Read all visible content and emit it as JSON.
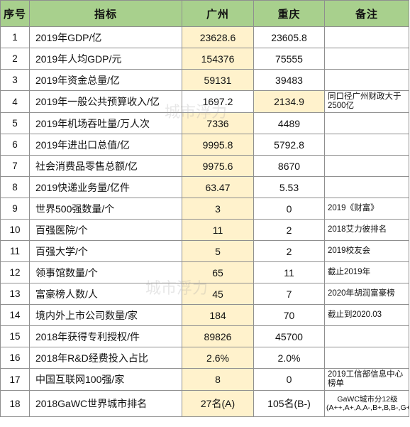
{
  "header": {
    "col_index": "序号",
    "col_indicator": "指标",
    "col_guangzhou": "广州",
    "col_chongqing": "重庆",
    "col_note": "备注"
  },
  "rows": [
    {
      "idx": "1",
      "indicator": "2019年GDP/亿",
      "gz": "23628.6",
      "cq": "23605.8",
      "note": "",
      "gz_hl": true,
      "cq_hl": false
    },
    {
      "idx": "2",
      "indicator": "2019年人均GDP/元",
      "gz": "154376",
      "cq": "75555",
      "note": "",
      "gz_hl": true,
      "cq_hl": false
    },
    {
      "idx": "3",
      "indicator": "2019年资金总量/亿",
      "gz": "59131",
      "cq": "39483",
      "note": "",
      "gz_hl": true,
      "cq_hl": false
    },
    {
      "idx": "4",
      "indicator": "2019年一般公共预算收入/亿",
      "gz": "1697.2",
      "cq": "2134.9",
      "note": "同口径广州财政大于2500亿",
      "gz_hl": false,
      "cq_hl": true
    },
    {
      "idx": "5",
      "indicator": "2019年机场吞吐量/万人次",
      "gz": "7336",
      "cq": "4489",
      "note": "",
      "gz_hl": true,
      "cq_hl": false
    },
    {
      "idx": "6",
      "indicator": "2019年进出口总值/亿",
      "gz": "9995.8",
      "cq": "5792.8",
      "note": "",
      "gz_hl": true,
      "cq_hl": false
    },
    {
      "idx": "7",
      "indicator": "社会消费品零售总额/亿",
      "gz": "9975.6",
      "cq": "8670",
      "note": "",
      "gz_hl": true,
      "cq_hl": false
    },
    {
      "idx": "8",
      "indicator": "2019快递业务量/亿件",
      "gz": "63.47",
      "cq": "5.53",
      "note": "",
      "gz_hl": true,
      "cq_hl": false
    },
    {
      "idx": "9",
      "indicator": "世界500强数量/个",
      "gz": "3",
      "cq": "0",
      "note": "2019《财富》",
      "gz_hl": true,
      "cq_hl": false
    },
    {
      "idx": "10",
      "indicator": "百强医院/个",
      "gz": "11",
      "cq": "2",
      "note": "2018艾力彼排名",
      "gz_hl": true,
      "cq_hl": false
    },
    {
      "idx": "11",
      "indicator": "百强大学/个",
      "gz": "5",
      "cq": "2",
      "note": "2019校友会",
      "gz_hl": true,
      "cq_hl": false
    },
    {
      "idx": "12",
      "indicator": "领事馆数量/个",
      "gz": "65",
      "cq": "11",
      "note": "截止2019年",
      "gz_hl": true,
      "cq_hl": false
    },
    {
      "idx": "13",
      "indicator": "富豪榜人数/人",
      "gz": "45",
      "cq": "7",
      "note": "2020年胡润富豪榜",
      "gz_hl": true,
      "cq_hl": false
    },
    {
      "idx": "14",
      "indicator": "境内外上市公司数量/家",
      "gz": "184",
      "cq": "70",
      "note": "截止到2020.03",
      "gz_hl": true,
      "cq_hl": false
    },
    {
      "idx": "15",
      "indicator": "2018年获得专利授权/件",
      "gz": "89826",
      "cq": "45700",
      "note": "",
      "gz_hl": true,
      "cq_hl": false
    },
    {
      "idx": "16",
      "indicator": "2018年R&D经费投入占比",
      "gz": "2.6%",
      "cq": "2.0%",
      "note": "",
      "gz_hl": true,
      "cq_hl": false
    },
    {
      "idx": "17",
      "indicator": "中国互联网100强/家",
      "gz": "8",
      "cq": "0",
      "note": "2019工信部信息中心榜单",
      "gz_hl": true,
      "cq_hl": false
    },
    {
      "idx": "18",
      "indicator": "2018GaWC世界城市排名",
      "gz": "27名(A)",
      "cq": "105名(B-)",
      "note": "GaWC城市分12级(A++,A+,A,A-,B+,B,B-,G+,G,G-,HS,S)",
      "gz_hl": true,
      "cq_hl": false
    }
  ],
  "watermarks": [
    "城市浮力",
    "城市浮力"
  ]
}
